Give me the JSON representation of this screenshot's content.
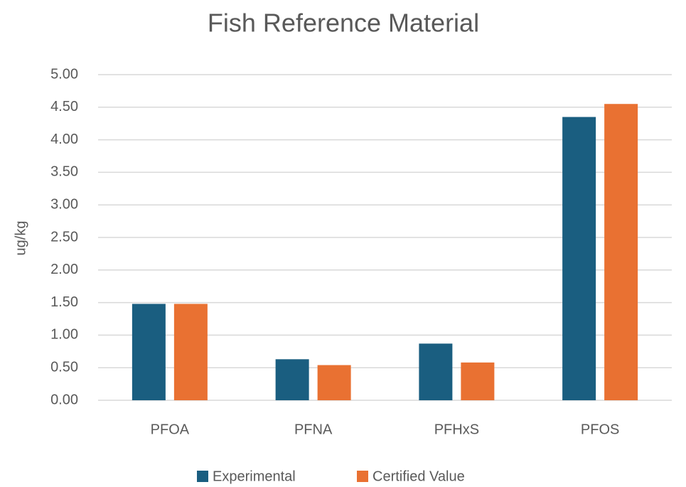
{
  "chart_data": {
    "type": "bar",
    "title": "Fish Reference Material",
    "y_label": "ug/kg",
    "categories": [
      "PFOA",
      "PFNA",
      "PFHxS",
      "PFOS"
    ],
    "series": [
      {
        "name": "Experimental",
        "color": "#1a5e80",
        "values": [
          1.48,
          0.63,
          0.87,
          4.35
        ]
      },
      {
        "name": "Certified Value",
        "color": "#e97132",
        "values": [
          1.48,
          0.54,
          0.58,
          4.55
        ]
      }
    ],
    "ylim": [
      0,
      5
    ],
    "yticks": [
      {
        "value": 0,
        "label": "0.00"
      },
      {
        "value": 0.5,
        "label": "0.50"
      },
      {
        "value": 1,
        "label": "1.00"
      },
      {
        "value": 1.5,
        "label": "1.50"
      },
      {
        "value": 2,
        "label": "2.00"
      },
      {
        "value": 2.5,
        "label": "2.50"
      },
      {
        "value": 3,
        "label": "3.00"
      },
      {
        "value": 3.5,
        "label": "3.50"
      },
      {
        "value": 4,
        "label": "4.00"
      },
      {
        "value": 4.5,
        "label": "4.50"
      },
      {
        "value": 5,
        "label": "5.00"
      }
    ],
    "grid": true,
    "legend": "bottom"
  }
}
